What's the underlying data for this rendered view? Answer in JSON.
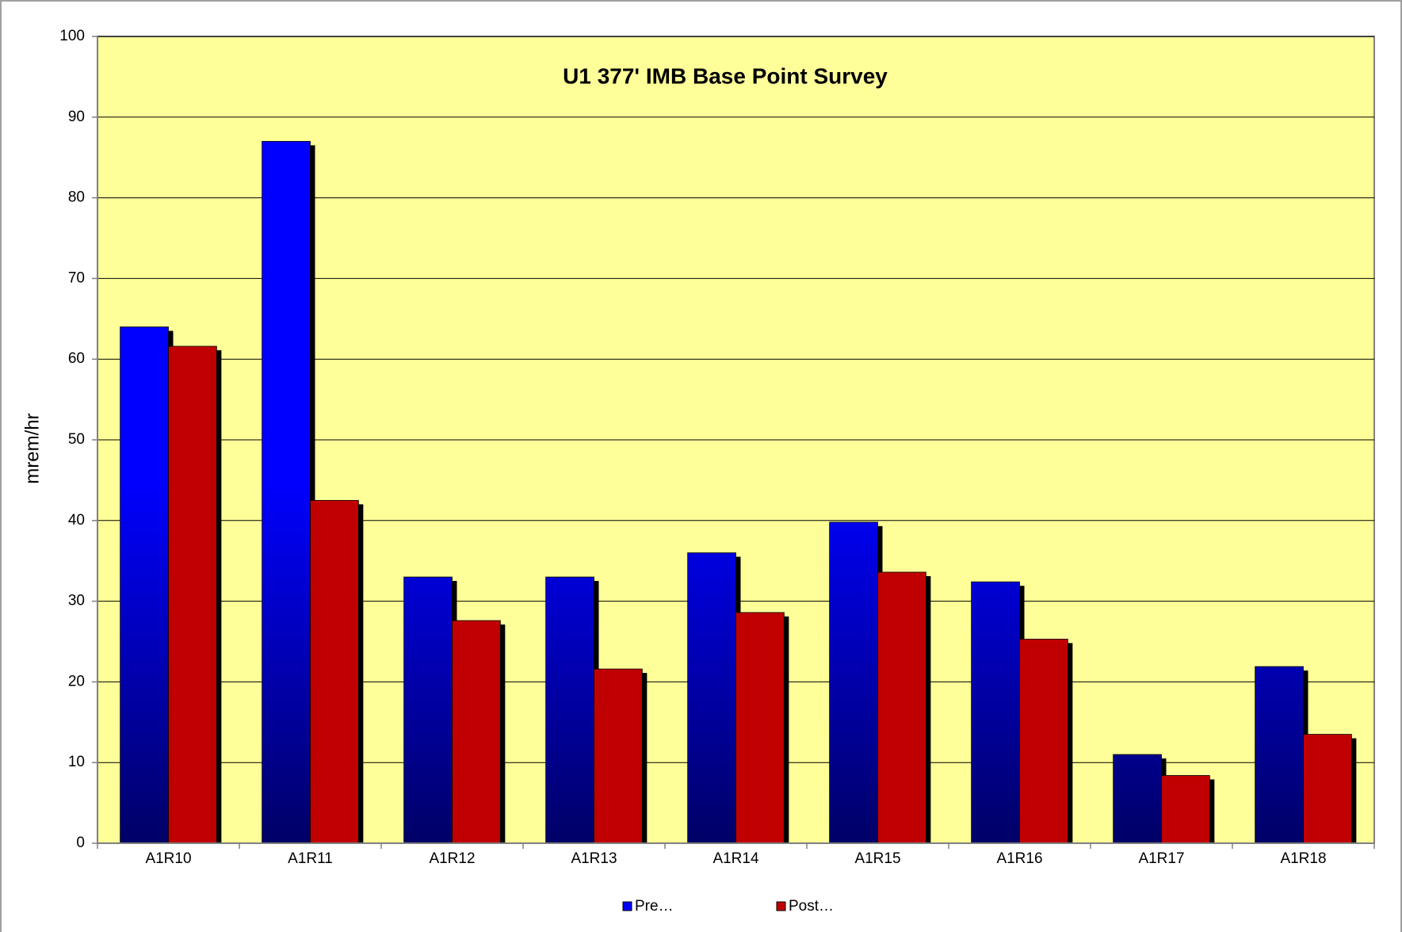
{
  "chart_data": {
    "type": "bar",
    "title": "U1 377' IMB Base Point Survey",
    "y_label": "mrem/hr",
    "categories": [
      "A1R10",
      "A1R11",
      "A1R12",
      "A1R13",
      "A1R14",
      "A1R15",
      "A1R16",
      "A1R17",
      "A1R18"
    ],
    "series": [
      {
        "name": "Pre…",
        "color": "#0000ff",
        "values": [
          64,
          87,
          33,
          33,
          36,
          39.8,
          32.4,
          11,
          21.9
        ]
      },
      {
        "name": "Post…",
        "color": "#c00000",
        "values": [
          61.6,
          42.5,
          27.6,
          21.6,
          28.6,
          33.6,
          25.3,
          8.4,
          13.5
        ]
      }
    ],
    "ylim": [
      0,
      100
    ],
    "yticks": [
      0,
      10,
      20,
      30,
      40,
      50,
      60,
      70,
      80,
      90,
      100
    ],
    "grid": true,
    "plot_background": "#ffff99",
    "legend": "bottom"
  }
}
